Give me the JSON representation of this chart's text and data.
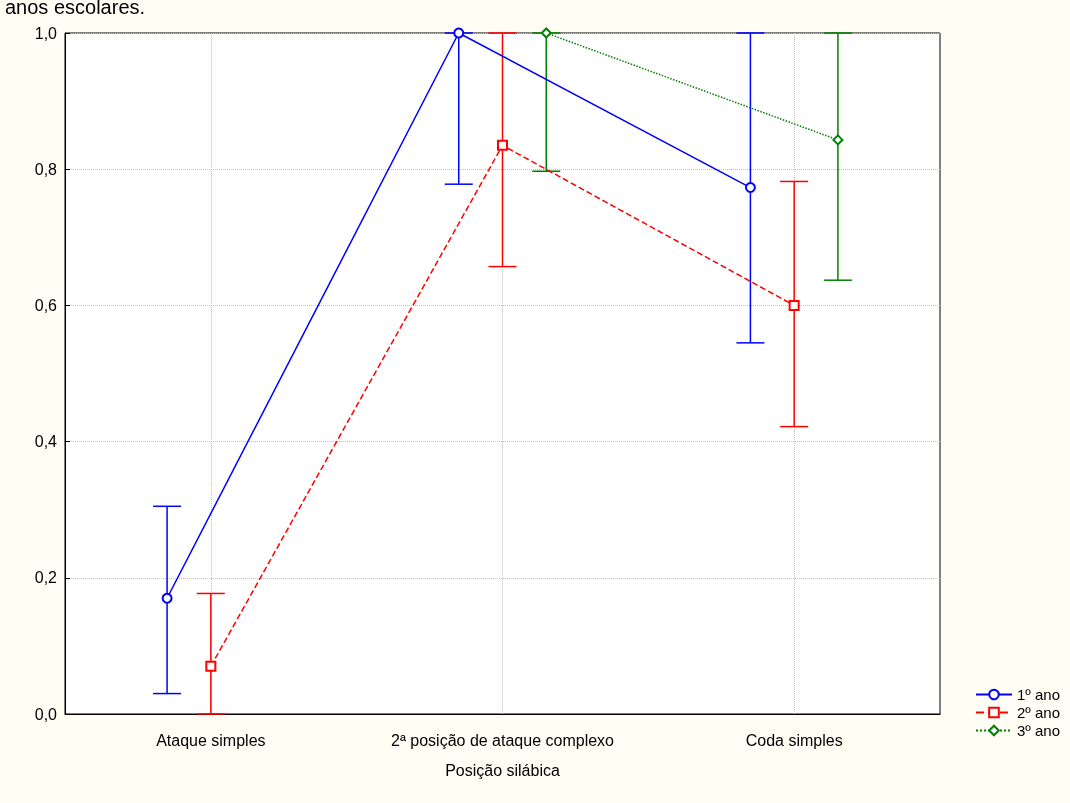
{
  "chart_data": {
    "type": "line",
    "title": "anos escolares.",
    "xlabel": "Posição silábica",
    "categories": [
      "Ataque simples",
      "2ª posição de ataque complexo",
      "Coda simples"
    ],
    "series": [
      {
        "name": "1º ano",
        "color": "#0000ff",
        "marker": "circle",
        "line_style": "solid",
        "values": [
          0.17,
          1.0,
          0.773
        ],
        "errors": [
          [
            0.03,
            0.305
          ],
          [
            0.778,
            1.0
          ],
          [
            0.545,
            1.0
          ]
        ]
      },
      {
        "name": "2º ano",
        "color": "#ff0000",
        "marker": "square",
        "line_style": "dashed",
        "values": [
          0.07,
          0.835,
          0.6
        ],
        "errors": [
          [
            0.0,
            0.177
          ],
          [
            0.657,
            1.0
          ],
          [
            0.422,
            0.782
          ]
        ]
      },
      {
        "name": "3º ano",
        "color": "#008000",
        "marker": "diamond",
        "line_style": "dotted",
        "values": [
          null,
          1.0,
          0.843
        ],
        "errors": [
          null,
          [
            0.797,
            1.0
          ],
          [
            0.637,
            1.0
          ]
        ]
      }
    ],
    "ylim": [
      0,
      1.0
    ],
    "yticks": [
      {
        "value": 0,
        "label": "0,0"
      },
      {
        "value": 0.2,
        "label": "0,2"
      },
      {
        "value": 0.4,
        "label": "0,4"
      },
      {
        "value": 0.6,
        "label": "0,6"
      },
      {
        "value": 0.8,
        "label": "0,8"
      },
      {
        "value": 1.0,
        "label": "1,0"
      }
    ],
    "grid": true,
    "legend": "bottom right"
  }
}
